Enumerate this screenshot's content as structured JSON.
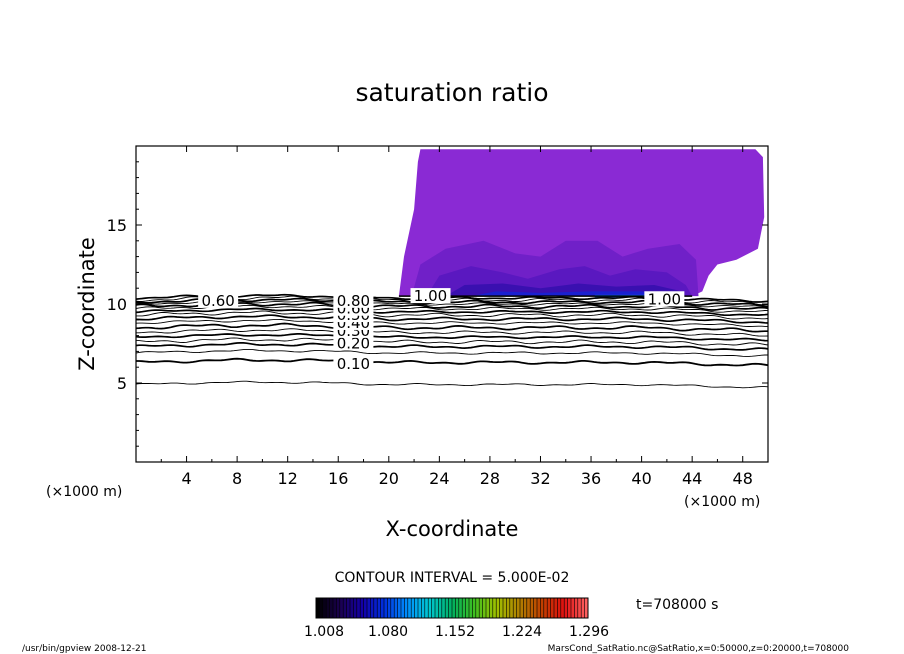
{
  "chart_data": {
    "type": "contour",
    "title": "saturation ratio",
    "xlabel": "X-coordinate",
    "ylabel": "Z-coordinate",
    "x_unit": "(×1000 m)",
    "y_unit": "(×1000 m)",
    "xlim": [
      0,
      50
    ],
    "ylim": [
      0,
      20
    ],
    "x_ticks": [
      4,
      8,
      12,
      16,
      20,
      24,
      28,
      32,
      36,
      40,
      44,
      48
    ],
    "y_ticks": [
      5,
      10,
      15
    ],
    "contour_interval_text": "CONTOUR INTERVAL = 5.000E-02",
    "contour_labels": [
      {
        "text": "0.10",
        "x": 17.2,
        "z": 6.2
      },
      {
        "text": "0.20",
        "x": 17.2,
        "z": 7.5
      },
      {
        "text": "0.30",
        "x": 17.2,
        "z": 8.3
      },
      {
        "text": "0.40",
        "x": 17.2,
        "z": 8.8
      },
      {
        "text": "0.50",
        "x": 17.2,
        "z": 9.3
      },
      {
        "text": "0.60",
        "x": 17.2,
        "z": 9.7
      },
      {
        "text": "0.80",
        "x": 17.2,
        "z": 10.2
      },
      {
        "text": "0.60",
        "x": 6.5,
        "z": 10.2
      },
      {
        "text": "1.00",
        "x": 23.3,
        "z": 10.5
      },
      {
        "text": "1.00",
        "x": 41.8,
        "z": 10.3
      }
    ],
    "supersaturated_region": {
      "x_range": [
        20.8,
        50
      ],
      "z_range": [
        10.5,
        19.7
      ]
    },
    "colorbar": {
      "ticks": [
        "1.008",
        "1.080",
        "1.152",
        "1.224",
        "1.296"
      ],
      "colors": [
        "#000000",
        "#1a0050",
        "#1400a8",
        "#0032e0",
        "#0090ff",
        "#00c8d0",
        "#00b060",
        "#40c020",
        "#a0c000",
        "#b08000",
        "#c04000",
        "#e01010",
        "#ff6060"
      ]
    },
    "fill_colors": {
      "outer": "#8a2ad4",
      "mid": "#7020c8",
      "inner": "#5a18c0",
      "deep": "#3a10b0",
      "core": "#1a20d0",
      "edge": "#1070ff"
    },
    "time_text": "t=708000 s",
    "footer_left": "/usr/bin/gpview   2008-12-21",
    "footer_right": "MarsCond_SatRatio.nc@SatRatio,x=0:50000,z=0:20000,t=708000"
  }
}
